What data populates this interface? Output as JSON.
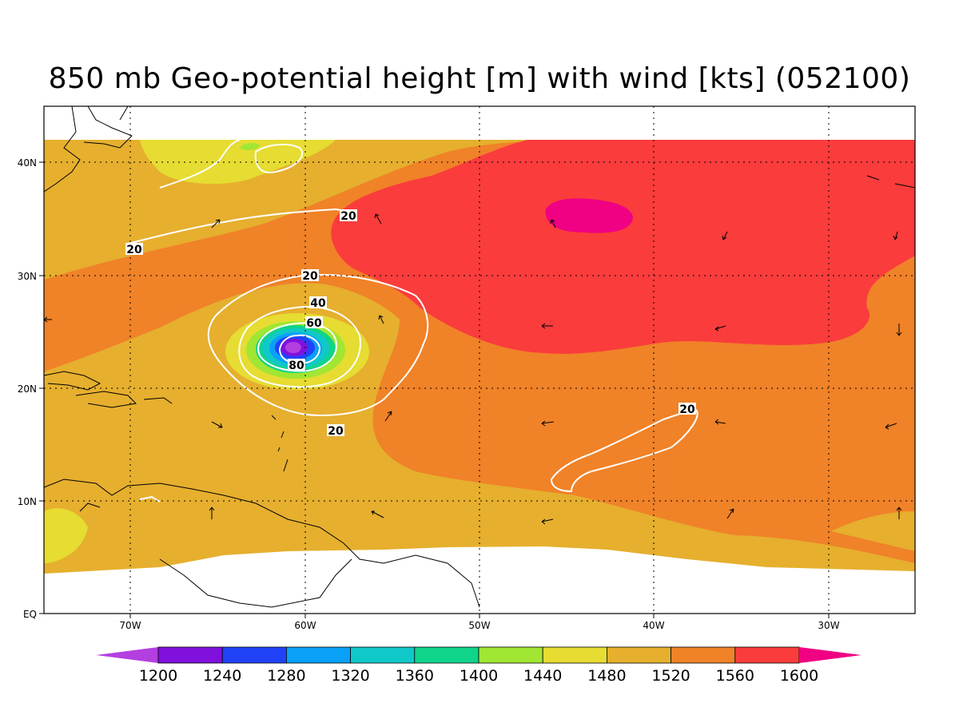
{
  "title": "850 mb Geo-potential height [m] with wind [kts] (052100)",
  "axes": {
    "x_ticks": [
      "70W",
      "60W",
      "50W",
      "40W",
      "30W"
    ],
    "y_ticks": [
      "40N",
      "30N",
      "20N",
      "10N",
      "EQ"
    ],
    "x_range_deg": [
      -75,
      -25
    ],
    "y_range_deg": [
      0,
      45
    ],
    "grid": "dotted"
  },
  "colorbar": {
    "levels": [
      "1200",
      "1240",
      "1280",
      "1320",
      "1360",
      "1400",
      "1440",
      "1480",
      "1520",
      "1560",
      "1600"
    ],
    "colors": [
      "#b33fe0",
      "#8010dc",
      "#2242f8",
      "#0aa0f8",
      "#10c8c8",
      "#10d48a",
      "#a0e632",
      "#e6dc32",
      "#e6af2e",
      "#f08228",
      "#fa3c3c",
      "#f00082"
    ]
  },
  "contour_labels": [
    "20",
    "20",
    "20",
    "40",
    "60",
    "80",
    "20",
    "20"
  ],
  "features": {
    "cyclone_center": {
      "lon": -60.5,
      "lat": 23.5,
      "min_height_m": 1200
    },
    "high_center": {
      "lon": -44.5,
      "lat": 35,
      "height_m": 1600
    }
  }
}
